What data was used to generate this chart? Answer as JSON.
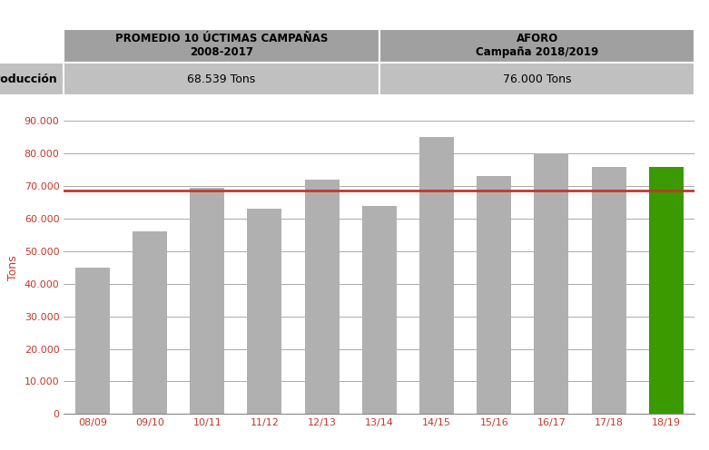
{
  "categories": [
    "08/09",
    "09/10",
    "10/11",
    "11/12",
    "12/13",
    "13/14",
    "14/15",
    "15/16",
    "16/17",
    "17/18",
    "18/19"
  ],
  "values": [
    45000,
    56000,
    69500,
    63000,
    72000,
    64000,
    85000,
    73000,
    80000,
    76000,
    76000
  ],
  "bar_colors": [
    "#b0b0b0",
    "#b0b0b0",
    "#b0b0b0",
    "#b0b0b0",
    "#b0b0b0",
    "#b0b0b0",
    "#b0b0b0",
    "#b0b0b0",
    "#b0b0b0",
    "#b0b0b0",
    "#3a9a00"
  ],
  "avg_line_y": 68539,
  "avg_line_color": "#c0392b",
  "ylim": [
    0,
    90000
  ],
  "yticks": [
    0,
    10000,
    20000,
    30000,
    40000,
    50000,
    60000,
    70000,
    80000,
    90000
  ],
  "ytick_labels": [
    "0",
    "10.000",
    "20.000",
    "30.000",
    "40.000",
    "50.000",
    "60.000",
    "70.000",
    "80.000",
    "90.000"
  ],
  "ylabel": "Tons",
  "ylabel_color": "#c0392b",
  "tick_color": "#c0392b",
  "table_header1": "PROMEDIO 10 ÚCTIMAS CAMPAÑAS\n2008-2017",
  "table_header2": "AFORO\nCampaña 2018/2019",
  "table_row_label": "Producción",
  "table_val1": "68.539 Tons",
  "table_val2": "76.000 Tons",
  "table_bg_header": "#a0a0a0",
  "table_bg_row": "#c0c0c0",
  "table_border_color": "#ffffff",
  "grid_color": "#888888",
  "background_color": "#ffffff",
  "bar_edgecolor": "none"
}
